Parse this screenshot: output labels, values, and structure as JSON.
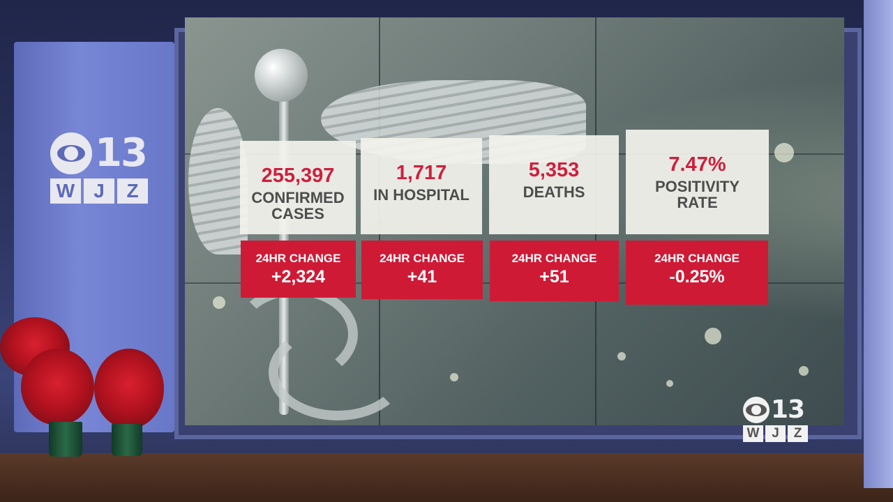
{
  "logo": {
    "network_number": "13",
    "call_letters": [
      "W",
      "J",
      "Z"
    ]
  },
  "stats": [
    {
      "value": "255,397",
      "label": "CONFIRMED\nCASES"
    },
    {
      "value": "1,717",
      "label": "IN HOSPITAL"
    },
    {
      "value": "5,353",
      "label": "DEATHS"
    },
    {
      "value": "7.47%",
      "label": "POSITIVITY\nRATE"
    }
  ],
  "changes": [
    {
      "label": "24HR CHANGE",
      "value": "+2,324"
    },
    {
      "label": "24HR CHANGE",
      "value": "+41"
    },
    {
      "label": "24HR CHANGE",
      "value": "+51"
    },
    {
      "label": "24HR CHANGE",
      "value": "-0.25%"
    }
  ],
  "watermark": {
    "network_number": "13",
    "call_letters": [
      "W",
      "J",
      "Z"
    ]
  },
  "colors": {
    "accent_red": "#cf1a36",
    "value_red": "#cf1f3c",
    "card_bg": "#f2f2ec",
    "brand_blue": "#5d6ab8"
  }
}
